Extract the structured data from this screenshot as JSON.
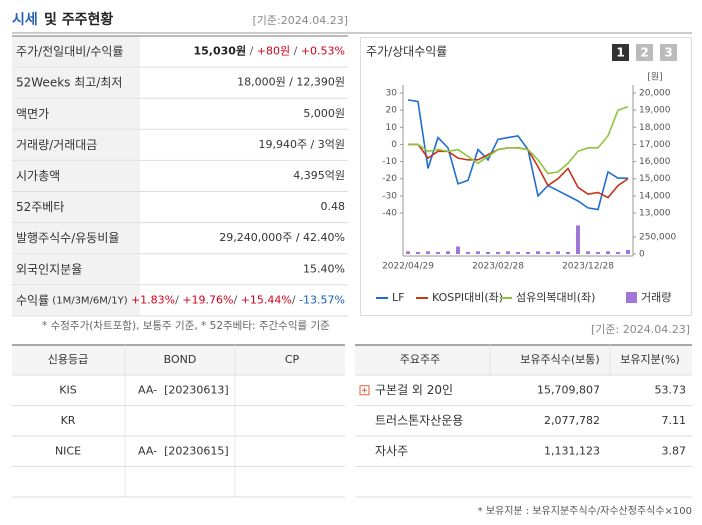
{
  "header": {
    "title_highlight": "시세",
    "title_rest": "및 주주현황",
    "date": "[기준:2024.04.23]"
  },
  "price_table": {
    "rows": [
      {
        "label": "주가/전일대비/수익률",
        "parts": [
          {
            "text": "15,030원",
            "color": "#222222",
            "bold": true
          },
          {
            "text": " / ",
            "color": "#555555"
          },
          {
            "text": "+80원",
            "color": "#d0021b"
          },
          {
            "text": " / ",
            "color": "#555555"
          },
          {
            "text": "+0.53%",
            "color": "#d0021b"
          }
        ]
      },
      {
        "label": "52Weeks 최고/최저",
        "parts": [
          {
            "text": "18,000원 / 12,390원",
            "color": "#333333"
          }
        ]
      },
      {
        "label": "액면가",
        "parts": [
          {
            "text": "5,000원",
            "color": "#333333"
          }
        ]
      },
      {
        "label": "거래량/거래대금",
        "parts": [
          {
            "text": "19,940주 / 3억원",
            "color": "#333333"
          }
        ]
      },
      {
        "label": "시가총액",
        "parts": [
          {
            "text": "4,395억원",
            "color": "#333333"
          }
        ]
      },
      {
        "label": "52주베타",
        "parts": [
          {
            "text": "0.48",
            "color": "#333333"
          }
        ]
      },
      {
        "label": "발행주식수/유동비율",
        "parts": [
          {
            "text": "29,240,000주 / 42.40%",
            "color": "#333333"
          }
        ]
      },
      {
        "label": "외국인지분율",
        "parts": [
          {
            "text": "15.40%",
            "color": "#333333"
          }
        ]
      },
      {
        "label": "수익률",
        "label_note": " (1M/3M/6M/1Y)",
        "parts": [
          {
            "text": "+1.83%",
            "color": "#d0021b"
          },
          {
            "text": "/ ",
            "color": "#555555"
          },
          {
            "text": "+19.76%",
            "color": "#d0021b"
          },
          {
            "text": "/ ",
            "color": "#555555"
          },
          {
            "text": "+15.44%",
            "color": "#d0021b"
          },
          {
            "text": "/ ",
            "color": "#555555"
          },
          {
            "text": "-13.57%",
            "color": "#1a5fb4"
          }
        ]
      }
    ],
    "note": "* 수정주가(차트포함), 보통주 기준, * 52주베타: 주간수익률 기준"
  },
  "chart_panel": {
    "title": "주가/상대수익률",
    "buttons": [
      "1",
      "2",
      "3"
    ]
  },
  "chart_data": {
    "type": "line",
    "categories": [
      "2022/04/29",
      null,
      null,
      null,
      null,
      null,
      null,
      null,
      null,
      "2023/02/28",
      null,
      null,
      null,
      null,
      null,
      null,
      null,
      null,
      "2023/12/28",
      null,
      null,
      null,
      null
    ],
    "series": [
      {
        "name": "LF",
        "color": "#1f6fd1",
        "axis": "y2",
        "values": [
          19600,
          19500,
          15600,
          17400,
          16800,
          14700,
          14900,
          16700,
          16100,
          17300,
          17400,
          17500,
          16700,
          14000,
          14600,
          14300,
          14000,
          13700,
          13300,
          13200,
          15400,
          15030,
          15030
        ]
      },
      {
        "name": "KOSPI대비(좌)",
        "color": "#c8341b",
        "values": [
          0,
          0,
          -8,
          -4,
          -4,
          -8,
          -9,
          -9,
          -6,
          -3,
          -2,
          -2,
          -3,
          -13,
          -24,
          -20,
          -14,
          -25,
          -29,
          -28,
          -31,
          -24,
          -20
        ]
      },
      {
        "name": "섬유의복대비(좌)",
        "color": "#8cc63e",
        "values": [
          0,
          0,
          -4,
          -3,
          -4,
          -3,
          -7,
          -11,
          -7,
          -3,
          -2,
          -2,
          -3,
          -9,
          -17,
          -16,
          -11,
          -4,
          -2,
          -2,
          5,
          20,
          22
        ]
      },
      {
        "name": "거래량",
        "color": "#a077d6",
        "axis": "y3",
        "type": "bar",
        "values": [
          40000,
          30000,
          40000,
          30000,
          40000,
          110000,
          30000,
          40000,
          30000,
          30000,
          40000,
          30000,
          30000,
          40000,
          30000,
          40000,
          30000,
          420000,
          40000,
          30000,
          40000,
          30000,
          60000
        ]
      }
    ],
    "ylim": [
      -40,
      30
    ],
    "yticks": [
      30,
      20,
      10,
      0,
      -10,
      -20,
      -30,
      -40
    ],
    "y2lim": [
      13000,
      20000
    ],
    "y2unit": "[원]",
    "y2ticks": [
      {
        "value": 20000,
        "label": "20,000"
      },
      {
        "value": 19000,
        "label": "19,000"
      },
      {
        "value": 18000,
        "label": "18,000"
      },
      {
        "value": 17000,
        "label": "17,000"
      },
      {
        "value": 16000,
        "label": "16,000"
      },
      {
        "value": 15000,
        "label": "15,000"
      },
      {
        "value": 14000,
        "label": "14,000"
      },
      {
        "value": 13000,
        "label": "13,000"
      }
    ],
    "y3lim": [
      0,
      250000
    ],
    "y3ticks": [
      0,
      {
        "value": 250000,
        "label": "250,000"
      }
    ]
  },
  "credit_table": {
    "headers": [
      "신용등급",
      "BOND",
      "CP"
    ],
    "rows": [
      [
        "KIS",
        "AA-  [20230613]"
      ],
      [
        "KR"
      ],
      [
        "NICE",
        "AA-  [20230615]"
      ]
    ]
  },
  "holders": {
    "date": "[기준: 2024.04.23]",
    "headers": [
      "주요주주",
      "보유주식수(보통)",
      "보유지분(%)"
    ],
    "rows": [
      [
        "구본걸 외 20인",
        "15,709,807",
        "53.73"
      ],
      [
        "트러스톤자산운용",
        "2,077,782",
        "7.11"
      ],
      [
        "자사주",
        "1,131,123",
        "3.87"
      ]
    ],
    "note": "* 보유지분 : 보유지분주식수/자수산정주식수×100"
  }
}
